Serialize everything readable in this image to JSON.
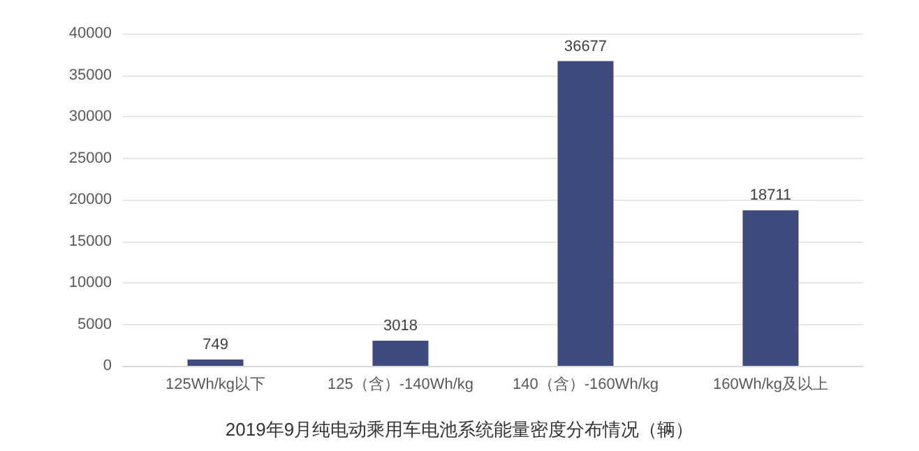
{
  "chart_data": {
    "type": "bar",
    "title": "2019年9月纯电动乘用车电池系统能量密度分布情况（辆）",
    "categories": [
      "125Wh/kg以下",
      "125（含）-140Wh/kg",
      "140（含）-160Wh/kg",
      "160Wh/kg及以上"
    ],
    "values": [
      749,
      3018,
      36677,
      18711
    ],
    "color": "#3f4a7d",
    "data_labels": true,
    "ylim": [
      0,
      40000
    ],
    "yticks": [
      0,
      5000,
      10000,
      15000,
      20000,
      25000,
      30000,
      35000,
      40000
    ],
    "grid": "y"
  }
}
